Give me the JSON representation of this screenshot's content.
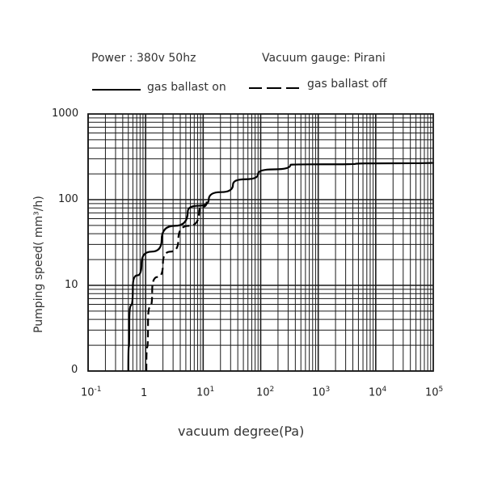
{
  "header": {
    "power": "Power : 380v 50hz",
    "gauge": "Vacuum gauge: Pirani"
  },
  "legend": {
    "solid_label": "gas ballast on",
    "dashed_label": "gas ballast off"
  },
  "axes": {
    "ylabel": "Pumping speed( mm³/h)",
    "xlabel": "vacuum degree(Pa)",
    "y_ticks": [
      "1000",
      "100",
      "10",
      "0"
    ],
    "x_ticks": [
      {
        "base": "10",
        "exp": "-1"
      },
      {
        "base": "1",
        "exp": ""
      },
      {
        "base": "10",
        "exp": "1"
      },
      {
        "base": "10",
        "exp": "2"
      },
      {
        "base": "10",
        "exp": "3"
      },
      {
        "base": "10",
        "exp": "4"
      },
      {
        "base": "10",
        "exp": "5"
      }
    ]
  },
  "colors": {
    "grid": "#1a1a1a",
    "curve": "#000000",
    "text": "#333333"
  },
  "chart_data": {
    "type": "line",
    "title": "",
    "subtitle": [
      "Power : 380v 50hz",
      "Vacuum gauge: Pirani"
    ],
    "xlabel": "vacuum degree(Pa)",
    "ylabel": "Pumping speed( mm³/h)",
    "xscale": "log",
    "yscale": "log",
    "xlim": [
      0.1,
      100000
    ],
    "ylim": [
      1,
      1000
    ],
    "x_tick_labels": [
      "10^-1",
      "1",
      "10^1",
      "10^2",
      "10^3",
      "10^4",
      "10^5"
    ],
    "y_tick_labels": [
      "0",
      "10",
      "100",
      "1000"
    ],
    "grid": true,
    "legend_position": "top",
    "series": [
      {
        "name": "gas ballast on",
        "style": "solid",
        "x": [
          0.5,
          0.52,
          0.6,
          0.85,
          1.9,
          5.4,
          12.5,
          33,
          90,
          330,
          4500,
          100000
        ],
        "y": [
          1,
          3.6,
          9.5,
          18,
          34,
          72,
          100,
          150,
          200,
          255,
          262,
          270
        ]
      },
      {
        "name": "gas ballast off",
        "style": "dashed",
        "x": [
          1.03,
          1.1,
          1.3,
          2.0,
          3.7,
          8.5,
          11.5
        ],
        "y": [
          1,
          3.6,
          8.7,
          18,
          34,
          72,
          95
        ]
      }
    ]
  }
}
